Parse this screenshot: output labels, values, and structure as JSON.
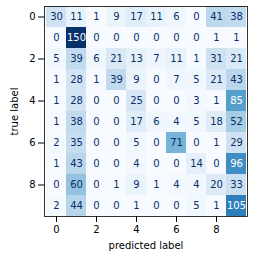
{
  "chart_data": {
    "type": "heatmap",
    "x_label": "predicted label",
    "y_label": "true label",
    "categories": [
      0,
      1,
      2,
      3,
      4,
      5,
      6,
      7,
      8,
      9
    ],
    "xticks": [
      0,
      2,
      4,
      6,
      8
    ],
    "yticks": [
      0,
      2,
      4,
      6,
      8
    ],
    "data_labels": true,
    "color": "blues",
    "color_range": [
      0,
      150
    ],
    "cells": [
      [
        30,
        11,
        1,
        9,
        17,
        11,
        6,
        0,
        41,
        38
      ],
      [
        0,
        150,
        0,
        0,
        0,
        0,
        0,
        0,
        1,
        1
      ],
      [
        5,
        39,
        6,
        21,
        13,
        7,
        11,
        1,
        31,
        21
      ],
      [
        1,
        28,
        1,
        39,
        9,
        0,
        7,
        5,
        21,
        43
      ],
      [
        1,
        28,
        0,
        0,
        25,
        0,
        0,
        3,
        1,
        85
      ],
      [
        1,
        38,
        0,
        0,
        17,
        6,
        4,
        5,
        18,
        52
      ],
      [
        2,
        35,
        0,
        0,
        5,
        0,
        71,
        0,
        1,
        29
      ],
      [
        1,
        43,
        0,
        0,
        4,
        0,
        0,
        14,
        0,
        96
      ],
      [
        0,
        60,
        0,
        1,
        9,
        1,
        4,
        4,
        20,
        33
      ],
      [
        2,
        44,
        0,
        0,
        1,
        0,
        0,
        5,
        1,
        105
      ]
    ]
  }
}
